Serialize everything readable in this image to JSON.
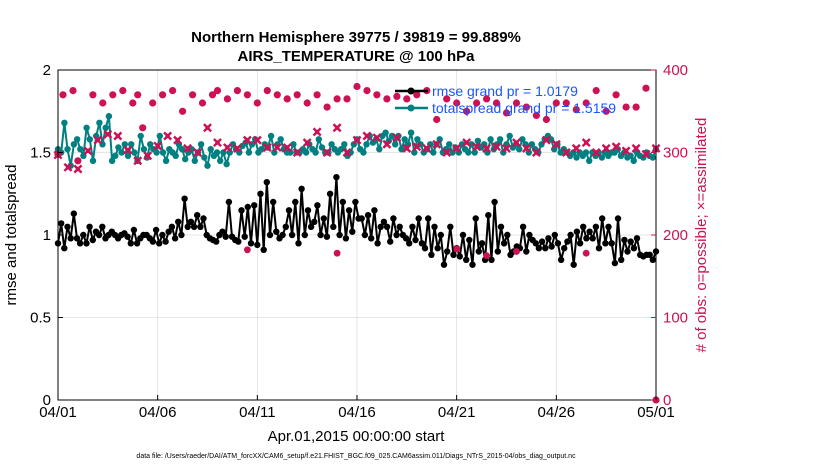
{
  "chart_data": {
    "type": "line",
    "title": "Northern Hemisphere 39775 / 39819 = 99.889%",
    "subtitle": "AIRS_TEMPERATURE @ 100 hPa",
    "xlabel": "Apr.01,2015 00:00:00 start",
    "ylabel": "rmse and totalspread",
    "ylabel_right": "# of obs: o=possible; ×=assimilated",
    "footer": "data file: /Users/raeder/DAI/ATM_forcXX/CAM6_setup/f.e21.FHIST_BGC.f09_025.CAM6assim.011/Diags_NTrS_2015-04/obs_diag_output.nc",
    "x_ticks": [
      "04/01",
      "04/06",
      "04/11",
      "04/16",
      "04/21",
      "04/26",
      "05/01"
    ],
    "x_range_days": [
      0,
      30
    ],
    "ylim": [
      0,
      2
    ],
    "y_ticks": [
      "0",
      "0.5",
      "1",
      "1.5",
      "2"
    ],
    "ylim_right": [
      0,
      400
    ],
    "y_ticks_right": [
      "0",
      "100",
      "200",
      "300",
      "400"
    ],
    "grid": true,
    "legend_position": "top-right",
    "series": [
      {
        "name": "rmse grand pr = 1.0179",
        "axis": "left",
        "color": "#000000",
        "marker": "circle",
        "values": [
          0.95,
          1.07,
          0.92,
          1.05,
          0.98,
          1.13,
          0.98,
          0.95,
          1.0,
          0.95,
          1.05,
          0.97,
          1.02,
          1.0,
          1.05,
          0.98,
          1.0,
          1.02,
          1.0,
          0.98,
          1.0,
          1.01,
          0.99,
          0.95,
          1.03,
          0.95,
          0.98,
          1.0,
          1.0,
          0.98,
          0.96,
          1.03,
          0.95,
          1.0,
          0.96,
          1.02,
          1.05,
          0.98,
          1.08,
          1.0,
          1.22,
          1.05,
          1.08,
          1.05,
          1.12,
          1.05,
          1.1,
          1.0,
          0.98,
          0.97,
          0.96,
          1.0,
          1.02,
          0.99,
          1.2,
          0.99,
          0.97,
          0.96,
          1.15,
          0.99,
          1.17,
          0.95,
          1.18,
          0.94,
          1.25,
          0.91,
          1.32,
          1.0,
          1.2,
          1.02,
          0.98,
          1.0,
          1.05,
          1.15,
          1.0,
          1.2,
          0.95,
          1.28,
          1.0,
          1.15,
          1.05,
          1.08,
          1.18,
          1.0,
          1.1,
          0.99,
          1.25,
          1.05,
          1.35,
          1.0,
          1.2,
          0.98,
          1.15,
          1.02,
          1.2,
          1.1,
          1.1,
          1.0,
          1.12,
          0.98,
          1.15,
          0.95,
          1.05,
          1.08,
          1.05,
          0.96,
          1.1,
          1.0,
          1.05,
          1.0,
          0.98,
          0.95,
          1.05,
          0.97,
          1.1,
          0.95,
          0.92,
          1.1,
          0.88,
          1.05,
          0.92,
          1.0,
          0.82,
          0.9,
          1.05,
          0.88,
          0.92,
          0.87,
          1.0,
          0.85,
          0.97,
          0.82,
          1.1,
          0.9,
          0.95,
          0.85,
          1.12,
          0.85,
          1.2,
          0.9,
          1.05,
          0.95,
          1.0,
          0.88,
          0.9,
          0.93,
          0.92,
          1.05,
          0.9,
          1.0,
          0.97,
          0.95,
          0.92,
          0.96,
          0.92,
          0.98,
          0.93,
          1.0,
          0.95,
          0.85,
          0.92,
          0.96,
          1.0,
          0.82,
          1.02,
          0.95,
          1.05,
          0.98,
          1.02,
          0.98,
          1.05,
          0.92,
          1.1,
          0.95,
          1.05,
          0.95,
          0.83,
          1.1,
          0.85,
          0.97,
          0.9,
          0.96,
          0.92,
          0.98,
          0.88,
          0.87,
          0.88,
          0.88,
          0.85,
          0.9
        ]
      },
      {
        "name": "totalspread grand pr = 1.5159",
        "axis": "left",
        "color": "#008080",
        "marker": "circle",
        "values": [
          1.52,
          1.5,
          1.68,
          1.52,
          1.42,
          1.55,
          1.58,
          1.52,
          1.48,
          1.65,
          1.58,
          1.45,
          1.6,
          1.68,
          1.55,
          1.65,
          1.72,
          1.45,
          1.48,
          1.53,
          1.5,
          1.55,
          1.48,
          1.55,
          1.5,
          1.45,
          1.6,
          1.52,
          1.47,
          1.55,
          1.52,
          1.5,
          1.6,
          1.5,
          1.45,
          1.52,
          1.5,
          1.48,
          1.55,
          1.52,
          1.46,
          1.5,
          1.52,
          1.45,
          1.5,
          1.55,
          1.47,
          1.42,
          1.52,
          1.48,
          1.5,
          1.45,
          1.5,
          1.43,
          1.5,
          1.55,
          1.52,
          1.5,
          1.54,
          1.56,
          1.5,
          1.55,
          1.58,
          1.5,
          1.52,
          1.55,
          1.53,
          1.6,
          1.5,
          1.55,
          1.58,
          1.52,
          1.5,
          1.5,
          1.55,
          1.5,
          1.5,
          1.52,
          1.5,
          1.55,
          1.52,
          1.5,
          1.58,
          1.53,
          1.5,
          1.5,
          1.55,
          1.52,
          1.5,
          1.52,
          1.55,
          1.48,
          1.5,
          1.55,
          1.58,
          1.52,
          1.5,
          1.55,
          1.6,
          1.56,
          1.58,
          1.52,
          1.6,
          1.62,
          1.57,
          1.6,
          1.55,
          1.6,
          1.52,
          1.58,
          1.55,
          1.62,
          1.5,
          1.58,
          1.55,
          1.5,
          1.52,
          1.55,
          1.5,
          1.55,
          1.58,
          1.5,
          1.52,
          1.55,
          1.5,
          1.53,
          1.5,
          1.55,
          1.52,
          1.5,
          1.55,
          1.5,
          1.57,
          1.53,
          1.55,
          1.5,
          1.58,
          1.52,
          1.55,
          1.58,
          1.5,
          1.55,
          1.6,
          1.53,
          1.55,
          1.52,
          1.58,
          1.55,
          1.5,
          1.55,
          1.52,
          1.5,
          1.55,
          1.58,
          1.6,
          1.58,
          1.52,
          1.55,
          1.5,
          1.52,
          1.5,
          1.48,
          1.5,
          1.47,
          1.5,
          1.48,
          1.5,
          1.45,
          1.5,
          1.48,
          1.5,
          1.47,
          1.5,
          1.48,
          1.5,
          1.5,
          1.52,
          1.48,
          1.5,
          1.47,
          1.48,
          1.45,
          1.5,
          1.48,
          1.47,
          1.5,
          1.48,
          1.47,
          1.52
        ]
      },
      {
        "name": "observations possible",
        "axis": "right",
        "color": "#cc1155",
        "marker": "circle",
        "points": [
          [
            0.0,
            298
          ],
          [
            0.25,
            370
          ],
          [
            0.75,
            375
          ],
          [
            1.0,
            290
          ],
          [
            1.75,
            370
          ],
          [
            2.25,
            360
          ],
          [
            2.75,
            370
          ],
          [
            3.25,
            375
          ],
          [
            3.75,
            360
          ],
          [
            4.0,
            370
          ],
          [
            4.25,
            330
          ],
          [
            4.75,
            360
          ],
          [
            5.25,
            370
          ],
          [
            5.75,
            375
          ],
          [
            6.25,
            350
          ],
          [
            6.75,
            370
          ],
          [
            7.25,
            360
          ],
          [
            7.75,
            370
          ],
          [
            8.0,
            375
          ],
          [
            8.5,
            365
          ],
          [
            9.0,
            375
          ],
          [
            9.5,
            370
          ],
          [
            10.0,
            360
          ],
          [
            10.5,
            375
          ],
          [
            11.0,
            370
          ],
          [
            11.5,
            365
          ],
          [
            12.0,
            370
          ],
          [
            12.5,
            360
          ],
          [
            13.0,
            370
          ],
          [
            13.5,
            355
          ],
          [
            14.0,
            365
          ],
          [
            14.5,
            365
          ],
          [
            15.0,
            380
          ],
          [
            15.5,
            375
          ],
          [
            16.0,
            370
          ],
          [
            16.5,
            365
          ],
          [
            17.0,
            368
          ],
          [
            17.5,
            365
          ],
          [
            18.0,
            370
          ],
          [
            18.5,
            375
          ],
          [
            19.0,
            340
          ],
          [
            19.5,
            365
          ],
          [
            20.0,
            360
          ],
          [
            20.5,
            350
          ],
          [
            21.0,
            360
          ],
          [
            21.5,
            365
          ],
          [
            22.0,
            360
          ],
          [
            22.5,
            348
          ],
          [
            23.0,
            360
          ],
          [
            23.5,
            355
          ],
          [
            24.0,
            345
          ],
          [
            24.5,
            340
          ],
          [
            25.0,
            360
          ],
          [
            25.5,
            360
          ],
          [
            26.0,
            352
          ],
          [
            26.5,
            360
          ],
          [
            27.0,
            375
          ],
          [
            27.5,
            350
          ],
          [
            28.0,
            370
          ],
          [
            28.5,
            355
          ],
          [
            29.0,
            355
          ],
          [
            29.5,
            378
          ],
          [
            30.0,
            0
          ]
        ]
      },
      {
        "name": "observations assimilated",
        "axis": "right",
        "color": "#cc1155",
        "marker": "x",
        "points": [
          [
            0.0,
            297
          ],
          [
            0.5,
            282
          ],
          [
            1.0,
            280
          ],
          [
            1.5,
            302
          ],
          [
            2.0,
            315
          ],
          [
            2.5,
            322
          ],
          [
            3.0,
            320
          ],
          [
            3.5,
            303
          ],
          [
            4.0,
            290
          ],
          [
            4.5,
            296
          ],
          [
            5.0,
            308
          ],
          [
            5.5,
            320
          ],
          [
            6.0,
            315
          ],
          [
            6.5,
            305
          ],
          [
            7.0,
            300
          ],
          [
            7.5,
            330
          ],
          [
            8.0,
            312
          ],
          [
            8.5,
            306
          ],
          [
            9.0,
            305
          ],
          [
            9.5,
            315
          ],
          [
            10.0,
            315
          ],
          [
            10.5,
            306
          ],
          [
            11.0,
            306
          ],
          [
            11.5,
            306
          ],
          [
            12.0,
            300
          ],
          [
            12.5,
            312
          ],
          [
            13.0,
            325
          ],
          [
            13.5,
            300
          ],
          [
            14.0,
            330
          ],
          [
            14.5,
            300
          ],
          [
            15.0,
            315
          ],
          [
            15.5,
            320
          ],
          [
            16.0,
            318
          ],
          [
            16.5,
            310
          ],
          [
            17.0,
            318
          ],
          [
            17.5,
            305
          ],
          [
            18.0,
            307
          ],
          [
            18.5,
            305
          ],
          [
            19.0,
            310
          ],
          [
            19.5,
            300
          ],
          [
            20.0,
            305
          ],
          [
            20.5,
            312
          ],
          [
            21.0,
            307
          ],
          [
            21.5,
            305
          ],
          [
            22.0,
            307
          ],
          [
            22.5,
            305
          ],
          [
            23.0,
            312
          ],
          [
            23.5,
            305
          ],
          [
            24.0,
            300
          ],
          [
            24.5,
            315
          ],
          [
            25.0,
            310
          ],
          [
            25.5,
            300
          ],
          [
            26.0,
            305
          ],
          [
            26.5,
            312
          ],
          [
            27.0,
            300
          ],
          [
            27.5,
            305
          ],
          [
            28.0,
            307
          ],
          [
            28.5,
            302
          ],
          [
            29.0,
            305
          ],
          [
            29.5,
            298
          ],
          [
            30.0,
            305
          ]
        ]
      }
    ],
    "outliers_right": [
      [
        9.5,
        182
      ],
      [
        14.0,
        178
      ],
      [
        20.0,
        183
      ],
      [
        21.5,
        175
      ],
      [
        23.0,
        180
      ],
      [
        26.5,
        178
      ]
    ]
  }
}
